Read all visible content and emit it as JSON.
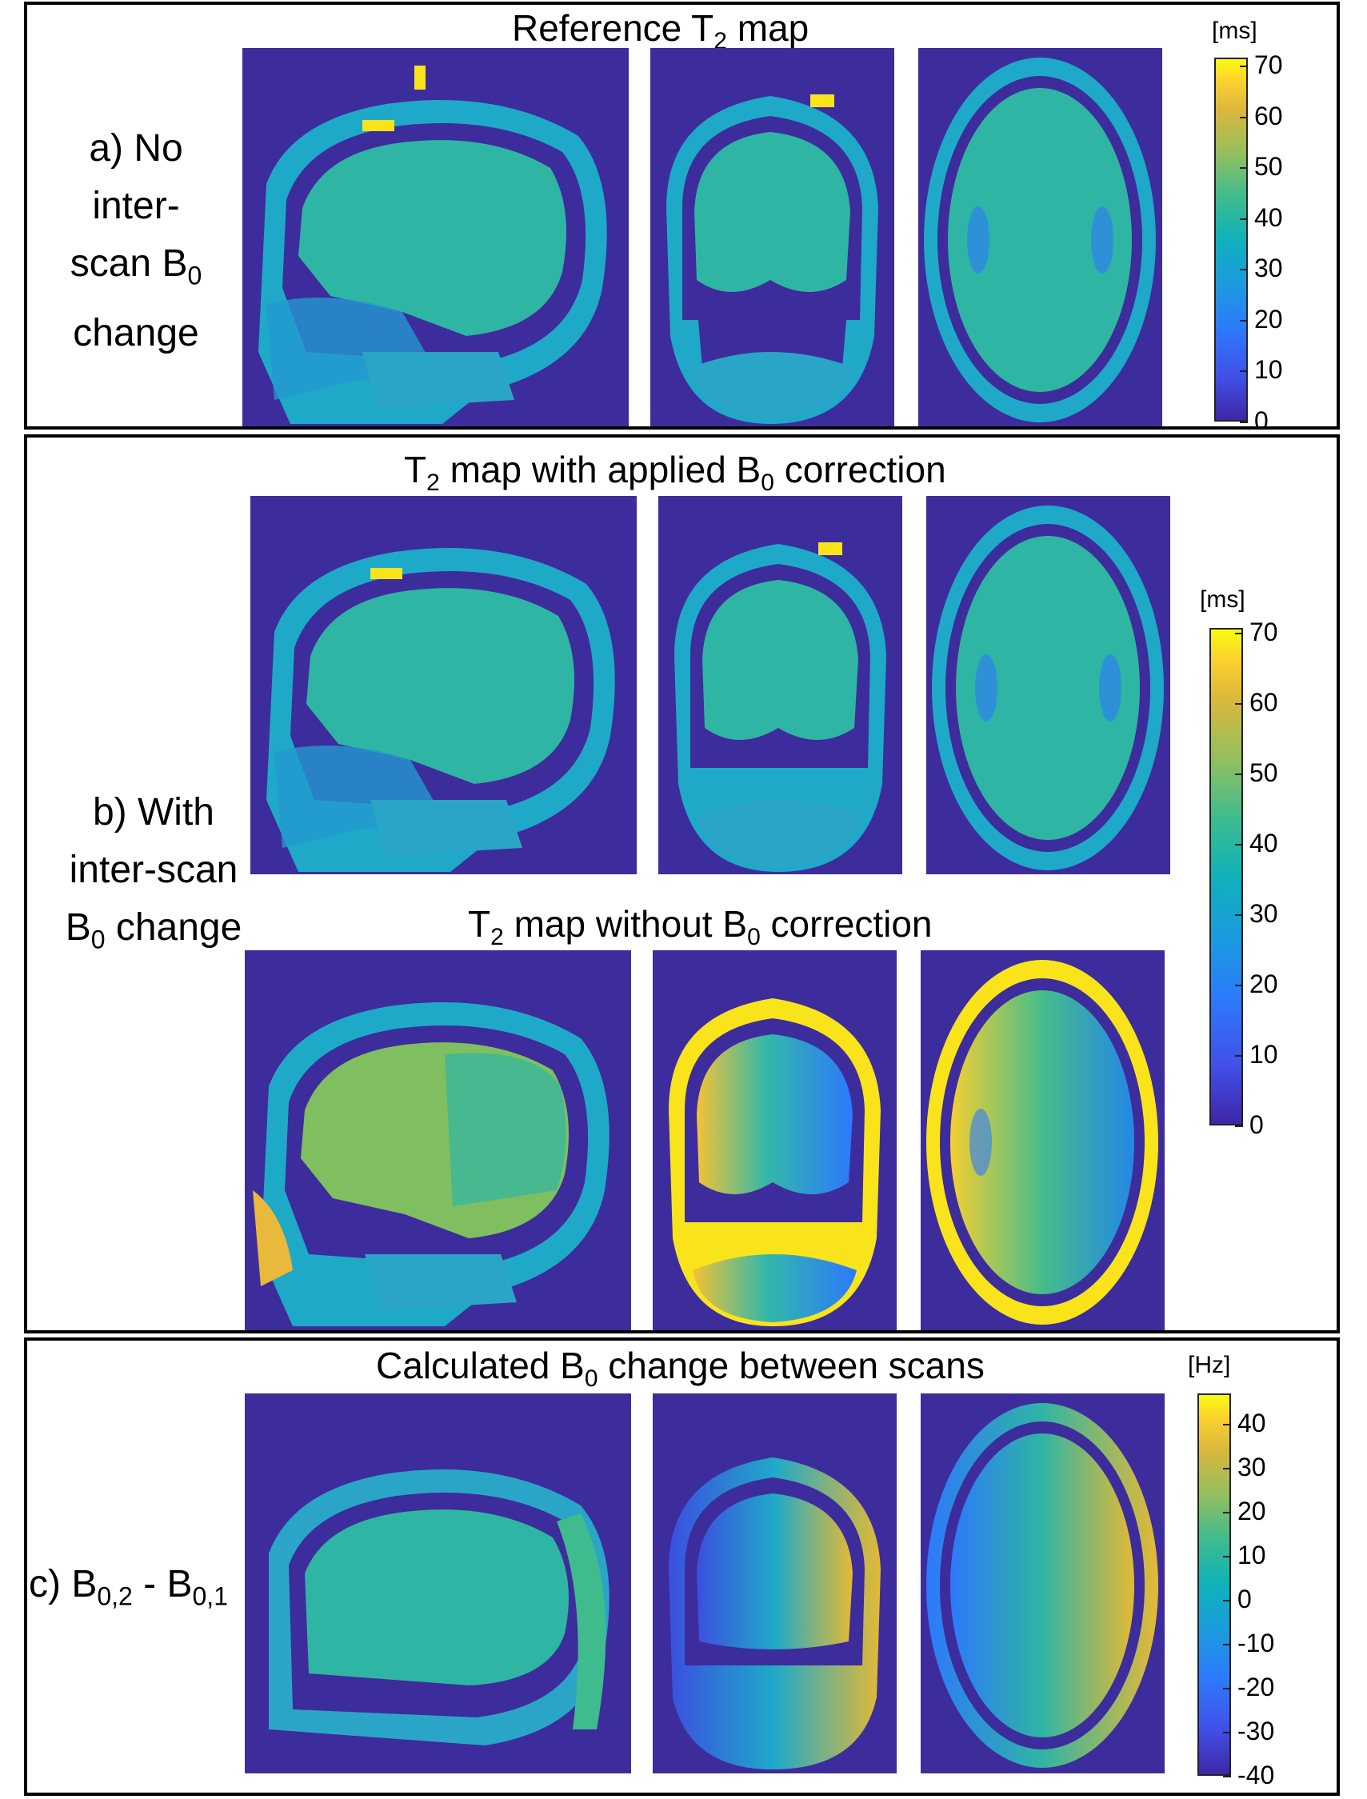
{
  "panels": {
    "a": {
      "title_main": "Reference T",
      "title_sub": "2",
      "title_tail": " map",
      "label_line1": "a) No",
      "label_line2": "inter-",
      "label_line3": "scan B",
      "label_line3_sub": "0",
      "label_line4": "change",
      "colorbar": {
        "unit": "[ms]",
        "ticks": [
          "70",
          "60",
          "50",
          "40",
          "30",
          "20",
          "10",
          "0"
        ]
      }
    },
    "b": {
      "title1_pre": "T",
      "title1_sub": "2",
      "title1_mid": " map with applied B",
      "title1_sub2": "0",
      "title1_tail": " correction",
      "title2_pre": "T",
      "title2_sub": "2",
      "title2_mid": " map without B",
      "title2_sub2": "0",
      "title2_tail": " correction",
      "label_line1": "b) With",
      "label_line2": "inter-scan",
      "label_line3": "B",
      "label_line3_sub": "0",
      "label_line3_tail": " change",
      "colorbar": {
        "unit": "[ms]",
        "ticks": [
          "70",
          "60",
          "50",
          "40",
          "30",
          "20",
          "10",
          "0"
        ]
      }
    },
    "c": {
      "title_pre": "Calculated B",
      "title_sub": "0",
      "title_tail": " change between scans",
      "label_pre": "c) B",
      "label_sub1": "0,2",
      "label_mid": " - B",
      "label_sub2": "0,1",
      "colorbar": {
        "unit": "[Hz]",
        "ticks": [
          "40",
          "30",
          "20",
          "10",
          "0",
          "-10",
          "-20",
          "-30",
          "-40"
        ]
      }
    }
  },
  "colors": {
    "background_map": "#3d2c9b",
    "brain_reference": "#2fb5a4",
    "skull_ring": "#1fa9c9",
    "warm_hot": "#f9e41c",
    "b0_brain": "#2aa5c8"
  }
}
